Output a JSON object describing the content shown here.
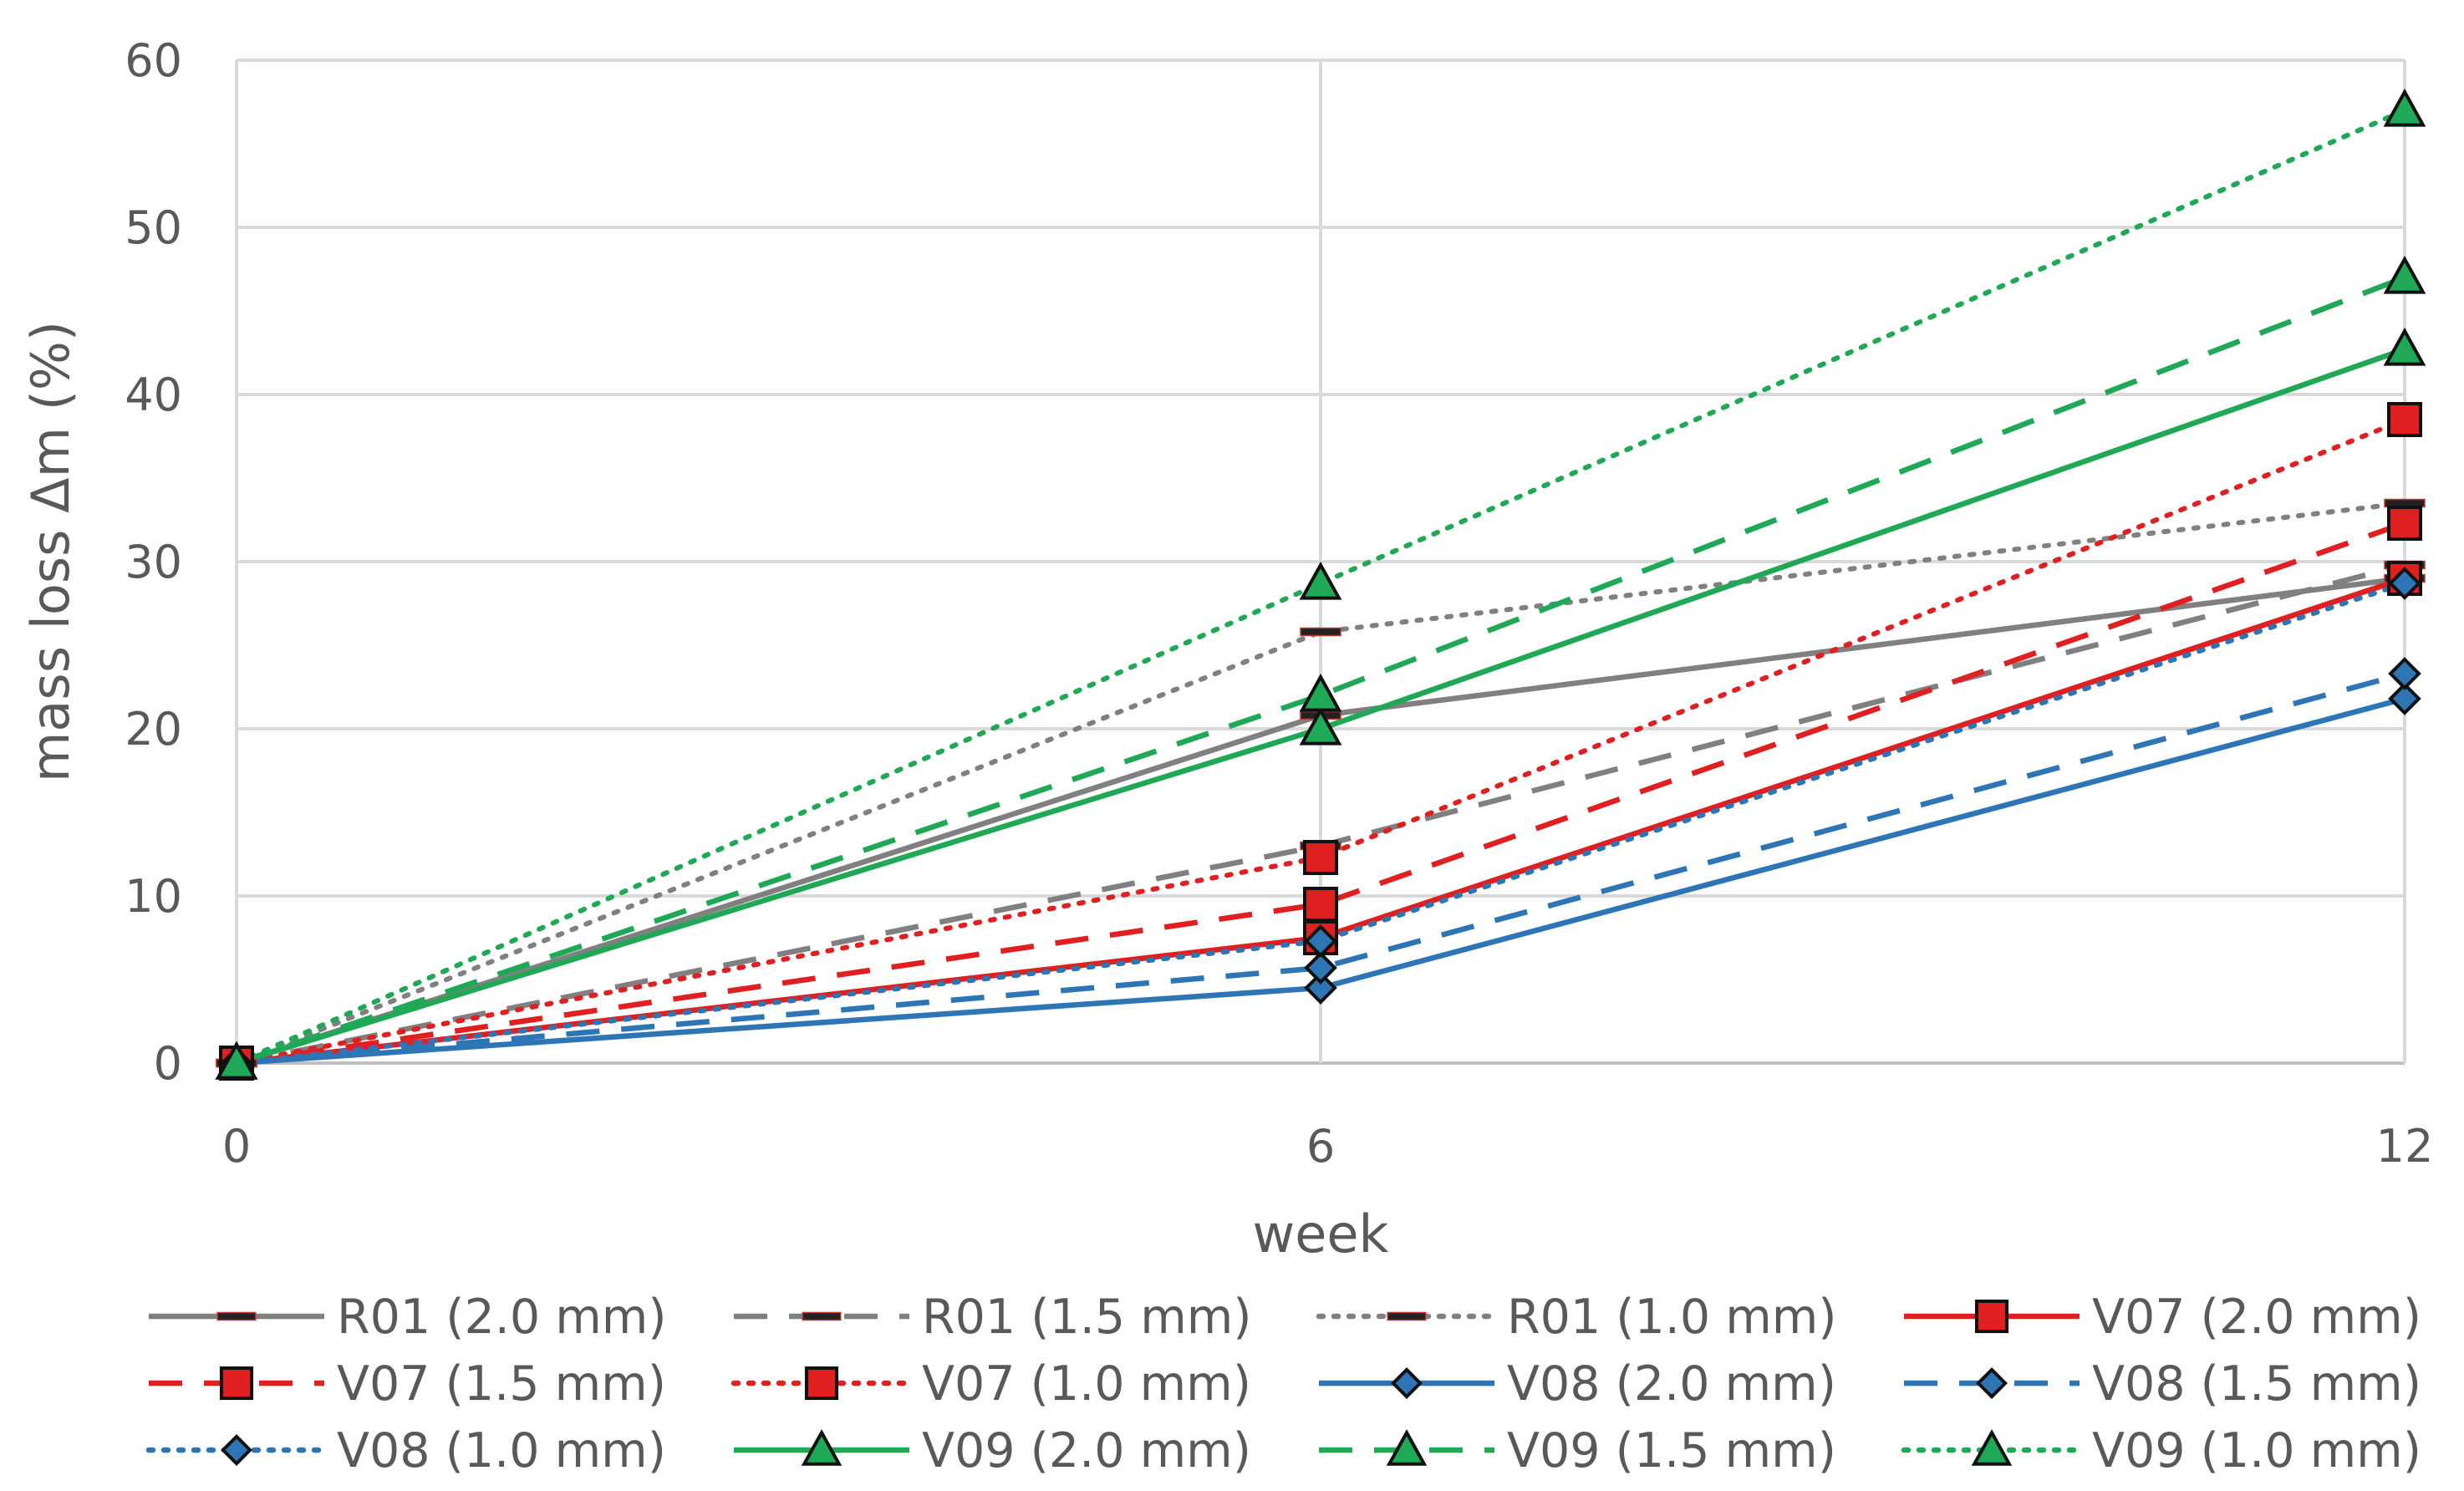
{
  "chart_data": {
    "type": "line",
    "title": "",
    "xlabel": "week",
    "ylabel": "mass loss Δm (%)",
    "x": [
      0,
      6,
      12
    ],
    "x_ticks": [
      "0",
      "6",
      "12"
    ],
    "y_ticks": [
      "0",
      "10",
      "20",
      "30",
      "40",
      "50",
      "60"
    ],
    "xlim": [
      0,
      12
    ],
    "ylim": [
      0,
      60
    ],
    "grid": true,
    "legend_position": "bottom",
    "series": [
      {
        "name": "R01 (2.0 mm)",
        "values": [
          0,
          20.8,
          29.0
        ],
        "color": "#808080",
        "dash": "solid",
        "marker": "dash"
      },
      {
        "name": "R01 (1.5 mm)",
        "values": [
          0,
          13.0,
          29.8
        ],
        "color": "#808080",
        "dash": "dashed",
        "marker": "dash"
      },
      {
        "name": "R01 (1.0 mm)",
        "values": [
          0,
          25.8,
          33.5
        ],
        "color": "#808080",
        "dash": "dotted",
        "marker": "dash"
      },
      {
        "name": "V07 (2.0 mm)",
        "values": [
          0,
          7.5,
          29.0
        ],
        "color": "#e02020",
        "dash": "solid",
        "marker": "square"
      },
      {
        "name": "V07 (1.5 mm)",
        "values": [
          0,
          9.5,
          32.3
        ],
        "color": "#e02020",
        "dash": "dashed",
        "marker": "square"
      },
      {
        "name": "V07 (1.0 mm)",
        "values": [
          0,
          12.3,
          38.5
        ],
        "color": "#e02020",
        "dash": "dotted",
        "marker": "square"
      },
      {
        "name": "V08 (2.0 mm)",
        "values": [
          0,
          4.5,
          21.8
        ],
        "color": "#2e75b6",
        "dash": "solid",
        "marker": "diamond"
      },
      {
        "name": "V08 (1.5 mm)",
        "values": [
          0,
          5.7,
          23.3
        ],
        "color": "#2e75b6",
        "dash": "dashed",
        "marker": "diamond"
      },
      {
        "name": "V08 (1.0 mm)",
        "values": [
          0,
          7.3,
          28.7
        ],
        "color": "#2e75b6",
        "dash": "dotted",
        "marker": "diamond"
      },
      {
        "name": "V09 (2.0 mm)",
        "values": [
          0,
          20.0,
          42.7
        ],
        "color": "#1fa855",
        "dash": "solid",
        "marker": "triangle"
      },
      {
        "name": "V09 (1.5 mm)",
        "values": [
          0,
          22.0,
          47.0
        ],
        "color": "#1fa855",
        "dash": "dashed",
        "marker": "triangle"
      },
      {
        "name": "V09 (1.0 mm)",
        "values": [
          0,
          28.7,
          57.0
        ],
        "color": "#1fa855",
        "dash": "dotted",
        "marker": "triangle"
      }
    ]
  }
}
